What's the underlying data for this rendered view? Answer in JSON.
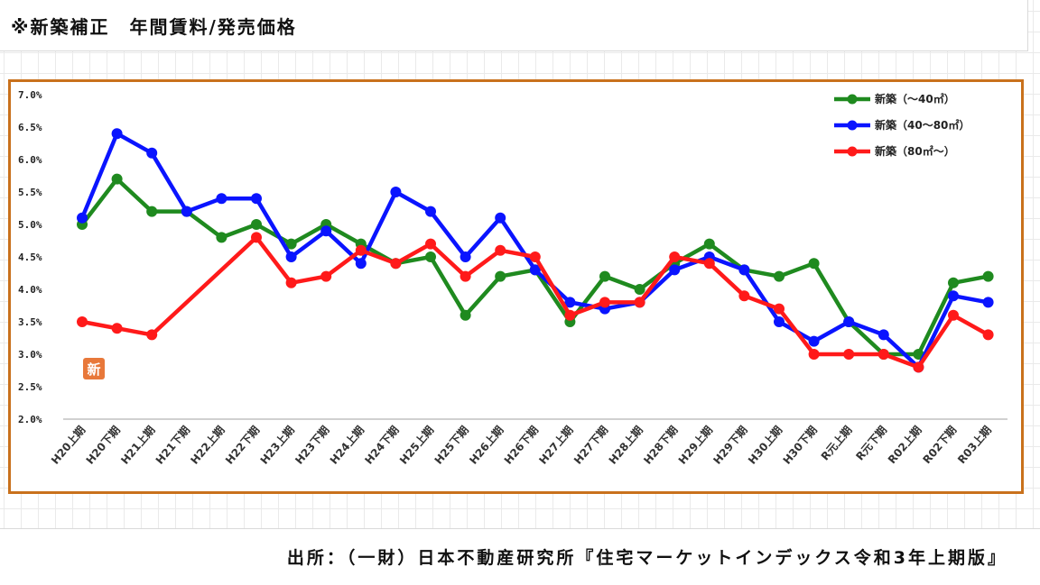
{
  "page": {
    "title": "※新築補正　年間賃料/発売価格",
    "source": "出所：（一財）日本不動産研究所『住宅マーケットインデックス令和3年上期版』"
  },
  "chart_data": {
    "type": "line",
    "categories": [
      "H20上期",
      "H20下期",
      "H21上期",
      "H21下期",
      "H22上期",
      "H22下期",
      "H23上期",
      "H23下期",
      "H24上期",
      "H24下期",
      "H25上期",
      "H25下期",
      "H26上期",
      "H26下期",
      "H27上期",
      "H27下期",
      "H28上期",
      "H28下期",
      "H29上期",
      "H29下期",
      "H30上期",
      "H30下期",
      "R元上期",
      "R元下期",
      "R02上期",
      "R02下期",
      "R03上期"
    ],
    "yticks": [
      "7.0%",
      "6.5%",
      "6.0%",
      "5.5%",
      "5.0%",
      "4.5%",
      "4.0%",
      "3.5%",
      "3.0%",
      "2.5%",
      "2.0%"
    ],
    "ylim": [
      2.0,
      7.0
    ],
    "grid": false,
    "legend_position": "top-right",
    "badge": "新",
    "series": [
      {
        "name": "新築（～40㎡）",
        "color": "#1f8a1f",
        "values": [
          5.0,
          5.7,
          5.2,
          5.2,
          4.8,
          5.0,
          4.7,
          5.0,
          4.7,
          4.4,
          4.5,
          3.6,
          4.2,
          4.3,
          3.5,
          4.2,
          4.0,
          4.4,
          4.7,
          4.3,
          4.2,
          4.4,
          3.5,
          3.0,
          3.0,
          4.1,
          4.2
        ]
      },
      {
        "name": "新築（40～80㎡）",
        "color": "#0a14ff",
        "values": [
          5.1,
          6.4,
          6.1,
          5.2,
          5.4,
          5.4,
          4.5,
          4.9,
          4.4,
          5.5,
          5.2,
          4.5,
          5.1,
          4.3,
          3.8,
          3.7,
          3.8,
          4.3,
          4.5,
          4.3,
          3.5,
          3.2,
          3.5,
          3.3,
          2.8,
          3.9,
          3.8
        ]
      },
      {
        "name": "新築（80㎡～）",
        "color": "#ff1a1a",
        "values": [
          3.5,
          3.4,
          3.3,
          null,
          null,
          4.8,
          4.1,
          4.2,
          4.6,
          4.4,
          4.7,
          4.2,
          4.6,
          4.5,
          3.6,
          3.8,
          3.8,
          4.5,
          4.4,
          3.9,
          3.7,
          3.0,
          3.0,
          3.0,
          2.8,
          3.6,
          3.3
        ]
      }
    ]
  }
}
